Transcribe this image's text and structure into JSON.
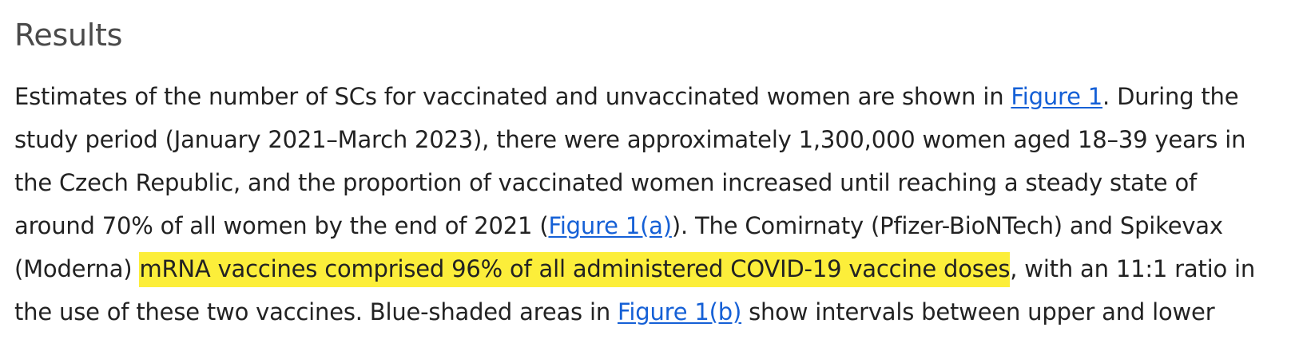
{
  "section": {
    "heading": "Results"
  },
  "paragraph": {
    "l1_a": "Estimates of the number of SCs for vaccinated and unvaccinated women are shown in ",
    "l1_link": "Figure 1",
    "l1_b": ". During the",
    "l2": "study period (January 2021–March 2023), there were approximately 1,300,000 women aged 18–39 years in",
    "l3": "the Czech Republic, and the proportion of vaccinated women increased until reaching a steady state of",
    "l4_a": "around 70% of all women by the end of 2021 (",
    "l4_link": "Figure 1(a)",
    "l4_b": "). The Comirnaty (Pfizer-BioNTech) and Spikevax",
    "l5_a": "(Moderna) ",
    "l5_highlight": "mRNA vaccines comprised 96% of all administered COVID-19 vaccine doses",
    "l5_b": ", with an 11:1 ratio in",
    "l6_a": "the use of these two vaccines. Blue-shaded areas in ",
    "l6_link": "Figure 1(b)",
    "l6_b": " show intervals between upper and lower"
  },
  "colors": {
    "highlight": "#fcee3a",
    "link": "#1560d6",
    "text": "#222222",
    "heading": "#4a4a4a"
  }
}
